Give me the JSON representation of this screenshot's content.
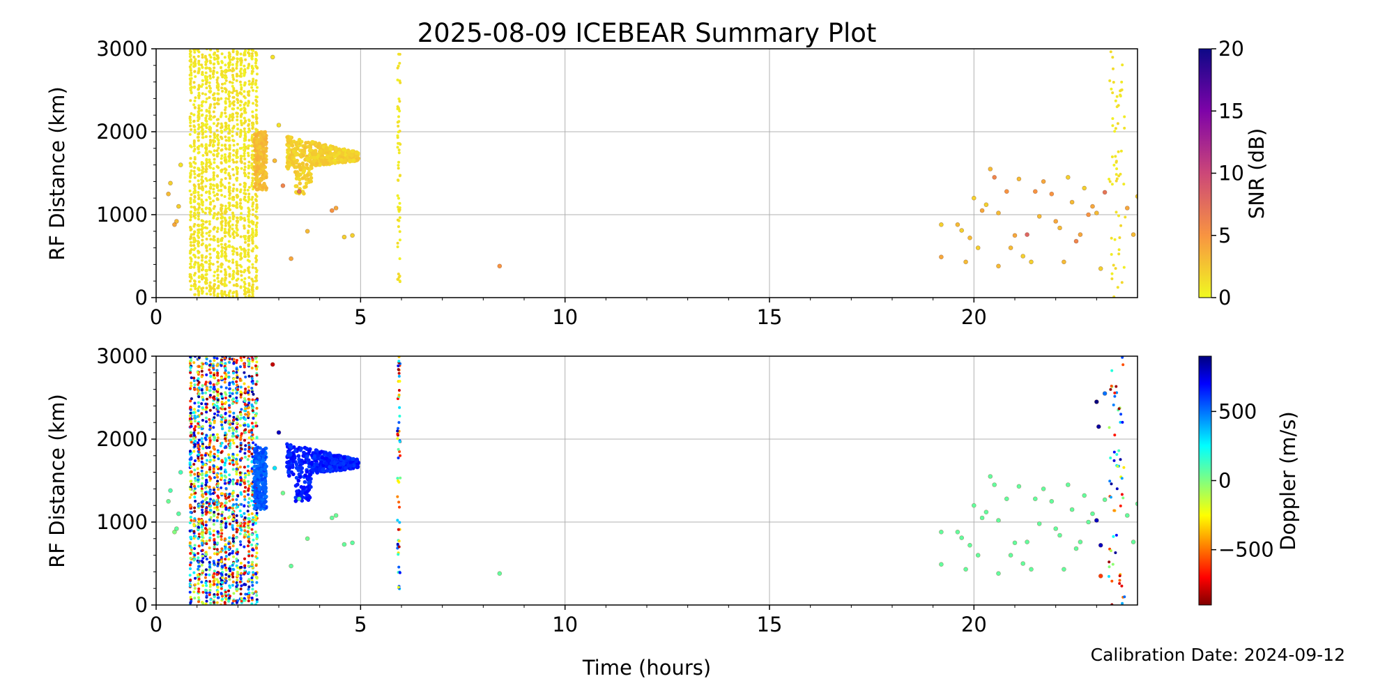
{
  "chart_data": [
    {
      "type": "scatter",
      "title": "2025-08-09 ICEBEAR Summary Plot",
      "xlabel": "",
      "ylabel": "RF Distance (km)",
      "xlim": [
        0,
        24
      ],
      "ylim": [
        0,
        3000
      ],
      "xticks": [
        "0",
        "5",
        "10",
        "15",
        "20"
      ],
      "yticks": [
        "0",
        "1000",
        "2000",
        "3000"
      ],
      "grid": true,
      "color_variable": "SNR",
      "colorbar": {
        "label": "SNR (dB)",
        "range": [
          0,
          20
        ],
        "ticks": [
          "0",
          "5",
          "10",
          "15",
          "20"
        ],
        "colormap": "plasma_r"
      },
      "clusters": [
        {
          "x": [
            0.8,
            2.5
          ],
          "y": [
            0,
            3000
          ],
          "value": 1,
          "density": "dense-band"
        },
        {
          "x": [
            2.4,
            2.7
          ],
          "y": [
            1300,
            2000
          ],
          "value": 3,
          "density": "dense"
        },
        {
          "x": [
            3.2,
            4.95
          ],
          "y": [
            1250,
            1950
          ],
          "value": 2,
          "density": "dense-streaks"
        },
        {
          "x": [
            5.9,
            5.97
          ],
          "y": [
            150,
            3000
          ],
          "value": 1,
          "density": "column"
        },
        {
          "x": [
            23.3,
            23.7
          ],
          "y": [
            0,
            3000
          ],
          "value": 1,
          "density": "column"
        }
      ],
      "points": [
        [
          0.3,
          1250,
          3
        ],
        [
          0.35,
          1380,
          2
        ],
        [
          0.45,
          880,
          4
        ],
        [
          0.5,
          920,
          3
        ],
        [
          0.55,
          1100,
          2
        ],
        [
          0.6,
          1600,
          1
        ],
        [
          8.4,
          380,
          5
        ],
        [
          3.1,
          1350,
          6
        ],
        [
          3.5,
          1280,
          7
        ],
        [
          4.3,
          1050,
          5
        ],
        [
          4.4,
          1080,
          4
        ],
        [
          4.8,
          750,
          2
        ],
        [
          3.3,
          470,
          4
        ],
        [
          3.7,
          800,
          3
        ],
        [
          4.6,
          730,
          2
        ],
        [
          2.9,
          1650,
          3
        ],
        [
          3.0,
          2080,
          1
        ],
        [
          2.85,
          2900,
          1
        ],
        [
          19.2,
          880,
          2
        ],
        [
          19.2,
          490,
          4
        ],
        [
          19.6,
          880,
          3
        ],
        [
          19.7,
          810,
          2
        ],
        [
          19.8,
          430,
          3
        ],
        [
          20.0,
          1200,
          2
        ],
        [
          20.2,
          1050,
          4
        ],
        [
          20.3,
          1120,
          2
        ],
        [
          20.4,
          1550,
          3
        ],
        [
          20.5,
          1450,
          6
        ],
        [
          20.6,
          1020,
          3
        ],
        [
          20.8,
          1280,
          5
        ],
        [
          20.9,
          600,
          3
        ],
        [
          21.0,
          750,
          4
        ],
        [
          21.1,
          1430,
          3
        ],
        [
          21.2,
          500,
          2
        ],
        [
          21.3,
          760,
          8
        ],
        [
          21.5,
          1280,
          5
        ],
        [
          21.6,
          980,
          3
        ],
        [
          21.7,
          1400,
          4
        ],
        [
          21.9,
          1250,
          5
        ],
        [
          22.0,
          920,
          4
        ],
        [
          22.1,
          840,
          3
        ],
        [
          22.2,
          430,
          3
        ],
        [
          22.3,
          1450,
          2
        ],
        [
          22.4,
          1150,
          3
        ],
        [
          22.5,
          680,
          6
        ],
        [
          22.6,
          760,
          4
        ],
        [
          22.7,
          1320,
          2
        ],
        [
          22.8,
          1000,
          5
        ],
        [
          23.0,
          1020,
          3
        ],
        [
          23.1,
          350,
          2
        ],
        [
          23.2,
          1270,
          7
        ],
        [
          23.9,
          760,
          3
        ],
        [
          24.0,
          1220,
          2
        ],
        [
          23.75,
          1080,
          4
        ],
        [
          20.6,
          380,
          3
        ],
        [
          21.4,
          430,
          2
        ],
        [
          19.9,
          720,
          3
        ],
        [
          20.1,
          600,
          2
        ],
        [
          22.9,
          1100,
          4
        ]
      ]
    },
    {
      "type": "scatter",
      "title": "",
      "xlabel": "Time (hours)",
      "ylabel": "RF Distance (km)",
      "xlim": [
        0,
        24
      ],
      "ylim": [
        0,
        3000
      ],
      "xticks": [
        "0",
        "5",
        "10",
        "15",
        "20"
      ],
      "yticks": [
        "0",
        "1000",
        "2000",
        "3000"
      ],
      "grid": true,
      "color_variable": "Doppler",
      "colorbar": {
        "label": "Doppler (m/s)",
        "range": [
          -900,
          900
        ],
        "ticks": [
          "−500",
          "0",
          "500"
        ],
        "tick_values": [
          -500,
          0,
          500
        ],
        "colormap": "jet_r"
      },
      "clusters": [
        {
          "x": [
            0.8,
            2.5
          ],
          "y": [
            0,
            3000
          ],
          "value": "mixed",
          "density": "dense-band"
        },
        {
          "x": [
            2.4,
            2.7
          ],
          "y": [
            1150,
            1900
          ],
          "value": 550,
          "density": "dense"
        },
        {
          "x": [
            3.2,
            4.95
          ],
          "y": [
            1250,
            1950
          ],
          "value": 650,
          "density": "dense-streaks"
        },
        {
          "x": [
            5.9,
            5.97
          ],
          "y": [
            150,
            3000
          ],
          "value": "mixed",
          "density": "column"
        },
        {
          "x": [
            23.3,
            23.7
          ],
          "y": [
            0,
            3000
          ],
          "value": "mixed",
          "density": "column"
        }
      ],
      "points": [
        [
          0.3,
          1250,
          50
        ],
        [
          0.35,
          1380,
          100
        ],
        [
          0.45,
          880,
          0
        ],
        [
          0.5,
          920,
          60
        ],
        [
          0.55,
          1100,
          80
        ],
        [
          0.6,
          1600,
          120
        ],
        [
          8.4,
          380,
          60
        ],
        [
          3.1,
          1350,
          40
        ],
        [
          3.5,
          1280,
          80
        ],
        [
          4.3,
          1050,
          60
        ],
        [
          4.4,
          1080,
          50
        ],
        [
          4.8,
          750,
          70
        ],
        [
          3.3,
          470,
          60
        ],
        [
          3.7,
          800,
          40
        ],
        [
          4.6,
          730,
          60
        ],
        [
          2.9,
          1650,
          300
        ],
        [
          3.0,
          2080,
          800
        ],
        [
          2.85,
          2900,
          -800
        ],
        [
          19.2,
          880,
          60
        ],
        [
          19.2,
          490,
          60
        ],
        [
          19.6,
          880,
          60
        ],
        [
          19.7,
          810,
          60
        ],
        [
          19.8,
          430,
          60
        ],
        [
          20.0,
          1200,
          60
        ],
        [
          20.2,
          1050,
          60
        ],
        [
          20.3,
          1120,
          60
        ],
        [
          20.4,
          1550,
          60
        ],
        [
          20.5,
          1450,
          60
        ],
        [
          20.6,
          1020,
          60
        ],
        [
          20.8,
          1280,
          60
        ],
        [
          20.9,
          600,
          60
        ],
        [
          21.0,
          750,
          60
        ],
        [
          21.1,
          1430,
          60
        ],
        [
          21.2,
          500,
          60
        ],
        [
          21.3,
          760,
          60
        ],
        [
          21.5,
          1280,
          60
        ],
        [
          21.6,
          980,
          60
        ],
        [
          21.7,
          1400,
          60
        ],
        [
          21.9,
          1250,
          60
        ],
        [
          22.0,
          920,
          60
        ],
        [
          22.1,
          840,
          60
        ],
        [
          22.2,
          430,
          60
        ],
        [
          22.3,
          1450,
          60
        ],
        [
          22.4,
          1150,
          60
        ],
        [
          22.5,
          680,
          60
        ],
        [
          22.6,
          760,
          60
        ],
        [
          22.7,
          1320,
          60
        ],
        [
          22.8,
          1000,
          60
        ],
        [
          23.0,
          1020,
          800
        ],
        [
          23.1,
          350,
          -600
        ],
        [
          23.2,
          1270,
          60
        ],
        [
          23.9,
          760,
          60
        ],
        [
          24.0,
          1220,
          60
        ],
        [
          23.75,
          1080,
          60
        ],
        [
          23.0,
          2450,
          900
        ],
        [
          23.05,
          2150,
          850
        ],
        [
          23.1,
          720,
          800
        ],
        [
          23.2,
          2550,
          500
        ],
        [
          20.6,
          380,
          60
        ],
        [
          21.4,
          430,
          60
        ],
        [
          19.9,
          720,
          60
        ],
        [
          20.1,
          600,
          60
        ],
        [
          22.9,
          1100,
          60
        ]
      ]
    }
  ],
  "footer": {
    "calibration": "Calibration Date: 2024-09-12"
  },
  "colors": {
    "grid": "#b0b0b0",
    "axis": "#000000"
  }
}
